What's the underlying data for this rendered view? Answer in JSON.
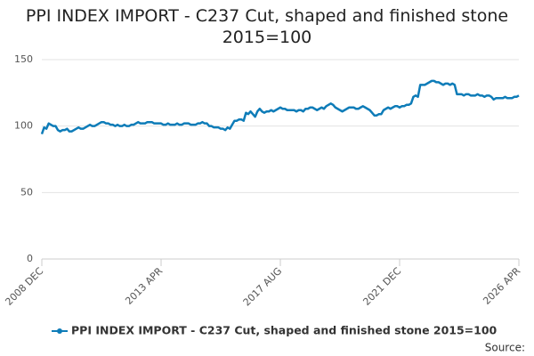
{
  "chart_data": {
    "type": "line",
    "title": "PPI INDEX IMPORT - C237 Cut, shaped and finished stone 2015=100",
    "source": "Source:",
    "categories": [
      "2008 DEC",
      null,
      null,
      null,
      null,
      null,
      null,
      null,
      null,
      null,
      null,
      null,
      null,
      null,
      null,
      null,
      null,
      null,
      null,
      null,
      null,
      null,
      null,
      null,
      null,
      null,
      null,
      null,
      null,
      null,
      null,
      null,
      null,
      null,
      null,
      null,
      null,
      null,
      null,
      null,
      null,
      null,
      null,
      null,
      null,
      null,
      null,
      null,
      null,
      null,
      null,
      null,
      "2013 APR",
      null,
      null,
      null,
      null,
      null,
      null,
      null,
      null,
      null,
      null,
      null,
      null,
      null,
      null,
      null,
      null,
      null,
      null,
      null,
      null,
      null,
      null,
      null,
      null,
      null,
      null,
      null,
      null,
      null,
      null,
      null,
      null,
      null,
      null,
      null,
      null,
      null,
      null,
      null,
      null,
      null,
      null,
      null,
      null,
      null,
      null,
      null,
      null,
      null,
      null,
      null,
      "2017 AUG",
      null,
      null,
      null,
      null,
      null,
      null,
      null,
      null,
      null,
      null,
      null,
      null,
      null,
      null,
      null,
      null,
      null,
      null,
      null,
      null,
      null,
      null,
      null,
      null,
      null,
      null,
      null,
      null,
      null,
      null,
      null,
      null,
      null,
      null,
      null,
      null,
      null,
      null,
      null,
      null,
      null,
      null,
      null,
      null,
      null,
      null,
      null,
      null,
      null,
      null,
      null,
      "2021 DEC",
      null,
      null,
      null,
      null,
      null,
      null,
      null,
      null,
      null,
      null,
      null,
      null,
      null,
      null,
      null,
      null,
      null,
      null,
      null,
      null,
      null,
      null,
      null,
      null,
      null,
      null,
      null,
      null,
      null,
      null,
      null,
      null,
      null,
      null,
      null,
      null,
      null,
      null,
      null,
      null,
      null,
      null,
      null,
      null,
      null,
      null,
      null,
      null,
      null,
      null,
      null,
      "2026 APR"
    ],
    "series": [
      {
        "name": "PPI INDEX IMPORT - C237 Cut, shaped and finished stone 2015=100",
        "color": "#0e7cb8",
        "values": [
          94,
          99,
          98,
          102,
          101,
          100,
          100,
          97,
          96,
          97,
          97,
          98,
          96,
          96,
          97,
          98,
          99,
          98,
          98,
          99,
          100,
          101,
          100,
          100,
          101,
          102,
          103,
          103,
          102,
          102,
          101,
          101,
          100,
          101,
          100,
          100,
          101,
          100,
          100,
          101,
          101,
          102,
          103,
          102,
          102,
          102,
          103,
          103,
          103,
          102,
          102,
          102,
          102,
          101,
          101,
          102,
          101,
          101,
          101,
          102,
          101,
          101,
          102,
          102,
          102,
          101,
          101,
          101,
          102,
          102,
          103,
          102,
          102,
          100,
          100,
          99,
          99,
          99,
          98,
          98,
          97,
          99,
          98,
          101,
          104,
          104,
          105,
          105,
          104,
          110,
          109,
          111,
          109,
          107,
          111,
          113,
          111,
          110,
          111,
          111,
          112,
          111,
          112,
          113,
          114,
          113,
          113,
          112,
          112,
          112,
          112,
          111,
          112,
          112,
          111,
          113,
          113,
          114,
          114,
          113,
          112,
          113,
          114,
          113,
          115,
          116,
          117,
          116,
          114,
          113,
          112,
          111,
          112,
          113,
          114,
          114,
          114,
          113,
          113,
          114,
          115,
          114,
          113,
          112,
          110,
          108,
          108,
          109,
          109,
          112,
          113,
          114,
          113,
          114,
          115,
          115,
          114,
          115,
          115,
          116,
          116,
          117,
          122,
          123,
          122,
          131,
          131,
          131,
          132,
          133,
          134,
          134,
          133,
          133,
          132,
          131,
          132,
          132,
          131,
          132,
          131,
          124,
          124,
          124,
          123,
          124,
          124,
          123,
          123,
          123,
          124,
          123,
          123,
          122,
          123,
          123,
          122,
          120,
          121,
          121,
          121,
          121,
          122,
          121,
          121,
          121,
          122,
          122,
          123
        ]
      }
    ],
    "ylim": [
      0,
      150
    ],
    "yticks": [
      0,
      50,
      100,
      150
    ],
    "grid": true
  }
}
